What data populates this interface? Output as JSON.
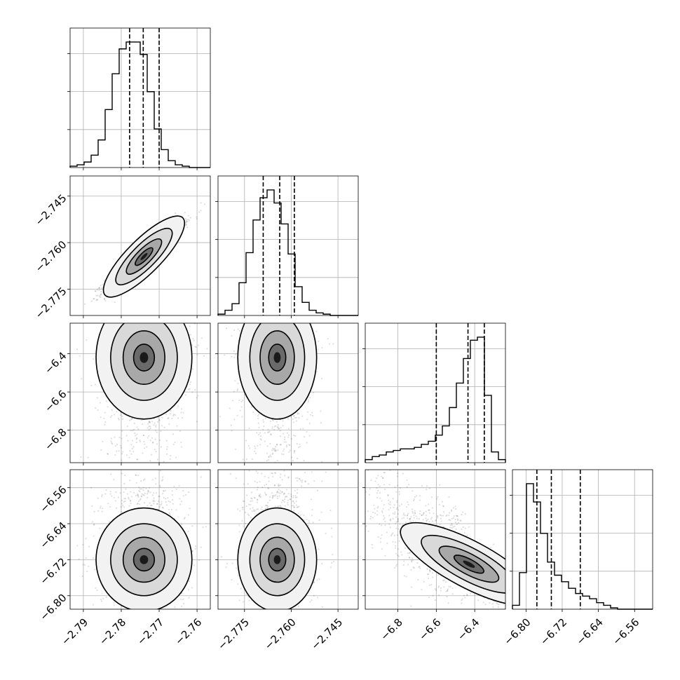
{
  "chart_data": {
    "type": "corner",
    "grid": true,
    "histogram_ticks": {
      "x0": [
        "−2.79",
        "−2.78",
        "−2.77",
        "−2.76"
      ],
      "x1": [
        "−2.775",
        "−2.760",
        "−2.745"
      ],
      "x2": [
        "−6.8",
        "−6.6",
        "−6.4"
      ],
      "x3": [
        "−6.80",
        "−6.72",
        "−6.64",
        "−6.56"
      ]
    },
    "parameters": [
      {
        "range": [
          -2.7935,
          -2.7565
        ],
        "ticks": [
          -2.79,
          -2.78,
          -2.77,
          -2.76
        ],
        "tick_labels": [
          "−2.79",
          "−2.78",
          "−2.77",
          "−2.76"
        ],
        "quantiles": [
          -2.7778,
          -2.7742,
          -2.77
        ],
        "hist": [
          1,
          2,
          4,
          9,
          20,
          42,
          68,
          86,
          91,
          91,
          82,
          55,
          28,
          13,
          5,
          2,
          1,
          0,
          0,
          0
        ]
      },
      {
        "range": [
          -2.7835,
          -2.7385
        ],
        "ticks": [
          -2.775,
          -2.76,
          -2.745
        ],
        "tick_labels": [
          "−2.775",
          "−2.760",
          "−2.745"
        ],
        "quantiles": [
          -2.769,
          -2.7637,
          -2.759
        ],
        "hist": [
          1,
          4,
          9,
          25,
          48,
          73,
          90,
          96,
          86,
          70,
          47,
          22,
          10,
          4,
          2,
          1,
          0,
          0,
          0,
          0
        ]
      },
      {
        "range": [
          -6.97,
          -6.24
        ],
        "ticks": [
          -6.8,
          -6.6,
          -6.4
        ],
        "tick_labels": [
          "−6.8",
          "−6.6",
          "−6.4"
        ],
        "quantiles": [
          -6.6,
          -6.435,
          -6.35
        ],
        "hist": [
          2,
          4,
          5,
          7,
          8,
          9,
          9,
          10,
          12,
          14,
          18,
          24,
          36,
          52,
          68,
          80,
          82,
          44,
          7,
          2
        ]
      },
      {
        "range": [
          -6.83,
          -6.52
        ],
        "ticks": [
          -6.8,
          -6.72,
          -6.64,
          -6.56
        ],
        "tick_labels": [
          "−6.80",
          "−6.72",
          "−6.64",
          "−6.56"
        ],
        "quantiles": [
          -6.776,
          -6.744,
          -6.68
        ],
        "hist": [
          3,
          28,
          96,
          82,
          58,
          36,
          26,
          21,
          16,
          12,
          10,
          8,
          5,
          3,
          1,
          0,
          0,
          0,
          0,
          0
        ]
      }
    ],
    "pairs": [
      {
        "row": 1,
        "col": 0,
        "mx": -2.774,
        "my": -2.7645,
        "sx": 0.005,
        "sy": 0.0053,
        "rho": 0.95,
        "scatterMode": "gauss"
      },
      {
        "row": 2,
        "col": 0,
        "mx": -2.774,
        "my": -6.42,
        "sx": 0.0055,
        "sy": 0.14,
        "rho": 0.05,
        "scatterMode": "skewY"
      },
      {
        "row": 2,
        "col": 1,
        "mx": -2.7645,
        "my": -6.42,
        "sx": 0.0055,
        "sy": 0.14,
        "rho": 0.05,
        "scatterMode": "skewY"
      },
      {
        "row": 3,
        "col": 0,
        "mx": -2.774,
        "my": -6.72,
        "sx": 0.0055,
        "sy": 0.05,
        "rho": 0.0,
        "scatterMode": "skewUp"
      },
      {
        "row": 3,
        "col": 1,
        "mx": -2.7645,
        "my": -6.72,
        "sx": 0.0055,
        "sy": 0.05,
        "rho": 0.0,
        "scatterMode": "skewUp"
      },
      {
        "row": 3,
        "col": 2,
        "mx": -6.43,
        "my": -6.73,
        "sx": 0.14,
        "sy": 0.05,
        "rho": -0.85,
        "scatterMode": "diag"
      }
    ]
  }
}
